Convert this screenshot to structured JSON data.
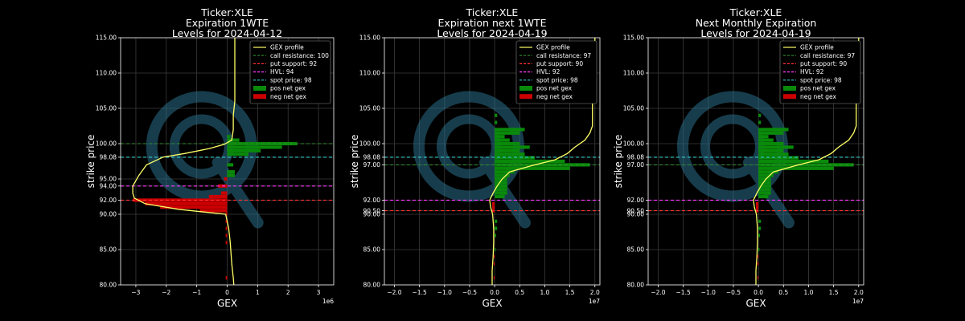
{
  "chart_data": [
    {
      "type": "bar",
      "title": [
        "Ticker:XLE",
        "Expiration 1WTE",
        "Levels for 2024-04-12"
      ],
      "xlabel": "GEX",
      "ylabel": "strike price",
      "x_exponent_label": "1e6",
      "x_scale": 1000000,
      "xlim": [
        -3.5,
        3.5
      ],
      "ylim": [
        80,
        115
      ],
      "xticks": [
        -3,
        -2,
        -1,
        0,
        1,
        2,
        3
      ],
      "xtick_labels": [
        "−3",
        "−2",
        "−1",
        "0",
        "1",
        "2",
        "3"
      ],
      "yticks": [
        80,
        85,
        90,
        92,
        94,
        95,
        98.08,
        100,
        105,
        110,
        115
      ],
      "ytick_labels": [
        "80.00",
        "85.00",
        "90.00",
        "92.00",
        "94.00",
        "95.00",
        "98.08",
        "100.00",
        "105.00",
        "110.00",
        "115.00"
      ],
      "grid": true,
      "legend_position": "top-right",
      "legend": [
        "GEX profile",
        "call resistance: 100",
        "put support: 92",
        "HVL: 94",
        "spot price: 98",
        "pos net gex",
        "neg net gex"
      ],
      "levels": {
        "call_resistance": 100,
        "put_support": 92,
        "hvl": 94,
        "spot": 98.08
      },
      "pos_bars": [
        [
          95.5,
          0.25
        ],
        [
          96,
          0.25
        ],
        [
          97,
          0.2
        ],
        [
          98.5,
          0.7
        ],
        [
          99,
          1.1
        ],
        [
          99.5,
          1.8
        ],
        [
          100,
          2.3
        ],
        [
          100.5,
          0.4
        ],
        [
          101,
          0.1
        ]
      ],
      "neg_bars": [
        [
          81,
          -0.05
        ],
        [
          86,
          -0.05
        ],
        [
          87,
          -0.05
        ],
        [
          88,
          -0.05
        ],
        [
          89,
          -0.05
        ],
        [
          90,
          -0.05
        ],
        [
          90.5,
          -0.9
        ],
        [
          91,
          -2.2
        ],
        [
          91.5,
          -2.7
        ],
        [
          92,
          -3.1
        ],
        [
          92.5,
          -0.6
        ],
        [
          93,
          -0.2
        ],
        [
          94,
          -0.3
        ],
        [
          95,
          -0.1
        ]
      ],
      "profile": [
        [
          0.22,
          80
        ],
        [
          0.2,
          81
        ],
        [
          0.15,
          83
        ],
        [
          0.1,
          86
        ],
        [
          0.05,
          88
        ],
        [
          0.0,
          89
        ],
        [
          -0.05,
          90
        ],
        [
          -1.6,
          90.7
        ],
        [
          -2.7,
          91.5
        ],
        [
          -3.05,
          92.3
        ],
        [
          -3.1,
          93
        ],
        [
          -3.1,
          94
        ],
        [
          -2.9,
          95.5
        ],
        [
          -2.65,
          97
        ],
        [
          -2.1,
          98.1
        ],
        [
          -1.4,
          98.6
        ],
        [
          -0.6,
          99.3
        ],
        [
          -0.1,
          99.9
        ],
        [
          0.15,
          100.5
        ],
        [
          0.2,
          102
        ],
        [
          0.2,
          104
        ],
        [
          0.25,
          106
        ],
        [
          0.25,
          110
        ],
        [
          0.25,
          115
        ]
      ]
    },
    {
      "type": "bar",
      "title": [
        "Ticker:XLE",
        "Expiration next 1WTE",
        "Levels for 2024-04-19"
      ],
      "xlabel": "GEX",
      "ylabel": "strike price",
      "x_exponent_label": "1e7",
      "x_scale": 10000000,
      "xlim": [
        -2.2,
        2.1
      ],
      "ylim": [
        80,
        115
      ],
      "xticks": [
        -2,
        -1.5,
        -1,
        -0.5,
        0,
        0.5,
        1,
        1.5,
        2
      ],
      "xtick_labels": [
        "−2.0",
        "−1.5",
        "−1.0",
        "−0.5",
        "0.0",
        "0.5",
        "1.0",
        "1.5",
        "2.0"
      ],
      "yticks": [
        80,
        85,
        90,
        90.5,
        92,
        97,
        98.08,
        100,
        105,
        110,
        115
      ],
      "ytick_labels": [
        "80.00",
        "85.00",
        "90.00",
        "90.50",
        "92.00",
        "97.00",
        "98.08",
        "100.00",
        "105.00",
        "110.00",
        "115.00"
      ],
      "grid": true,
      "legend_position": "top-right",
      "legend": [
        "GEX profile",
        "call resistance: 97",
        "put support: 90",
        "HVL: 92",
        "spot price: 98",
        "pos net gex",
        "neg net gex"
      ],
      "levels": {
        "call_resistance": 97,
        "put_support": 90.5,
        "hvl": 92,
        "spot": 98.08
      },
      "pos_bars": [
        [
          85,
          0.02
        ],
        [
          87,
          0.03
        ],
        [
          88,
          0.05
        ],
        [
          89,
          0.05
        ],
        [
          92.5,
          0.2
        ],
        [
          93,
          0.25
        ],
        [
          93.5,
          0.25
        ],
        [
          94,
          0.25
        ],
        [
          94.5,
          0.25
        ],
        [
          95,
          0.25
        ],
        [
          95.5,
          0.3
        ],
        [
          96,
          0.4
        ],
        [
          96.5,
          1.5
        ],
        [
          97,
          1.9
        ],
        [
          97.5,
          1.4
        ],
        [
          98,
          0.8
        ],
        [
          98.5,
          0.6
        ],
        [
          99,
          0.5
        ],
        [
          99.5,
          0.7
        ],
        [
          100,
          0.5
        ],
        [
          100.5,
          0.3
        ],
        [
          101,
          0.2
        ],
        [
          101.5,
          0.5
        ],
        [
          102,
          0.6
        ],
        [
          103,
          0.05
        ],
        [
          104,
          0.05
        ]
      ],
      "neg_bars": [
        [
          81,
          -0.02
        ],
        [
          83,
          -0.02
        ],
        [
          84,
          -0.02
        ],
        [
          90.5,
          -0.05
        ],
        [
          91,
          -0.05
        ],
        [
          91.5,
          -0.05
        ]
      ],
      "profile": [
        [
          -0.05,
          80
        ],
        [
          -0.05,
          82
        ],
        [
          -0.03,
          84
        ],
        [
          -0.02,
          86
        ],
        [
          -0.02,
          88
        ],
        [
          -0.04,
          90
        ],
        [
          -0.08,
          91
        ],
        [
          -0.1,
          92
        ],
        [
          -0.03,
          93
        ],
        [
          0.05,
          94
        ],
        [
          0.15,
          95
        ],
        [
          0.3,
          96
        ],
        [
          0.8,
          97
        ],
        [
          1.2,
          97.7
        ],
        [
          1.45,
          98.6
        ],
        [
          1.6,
          99.5
        ],
        [
          1.8,
          100.5
        ],
        [
          1.9,
          101.5
        ],
        [
          1.95,
          102.5
        ],
        [
          1.95,
          106
        ],
        [
          2.0,
          110
        ],
        [
          2.0,
          115
        ]
      ]
    },
    {
      "type": "bar",
      "title": [
        "Ticker:XLE",
        "Next Monthly Expiration",
        "Levels for 2024-04-19"
      ],
      "xlabel": "GEX",
      "ylabel": "strike price",
      "x_exponent_label": "1e7",
      "x_scale": 10000000,
      "xlim": [
        -2.2,
        2.1
      ],
      "ylim": [
        80,
        115
      ],
      "xticks": [
        -2,
        -1.5,
        -1,
        -0.5,
        0,
        0.5,
        1,
        1.5,
        2
      ],
      "xtick_labels": [
        "−2.0",
        "−1.5",
        "−1.0",
        "−0.5",
        "0.0",
        "0.5",
        "1.0",
        "1.5",
        "2.0"
      ],
      "yticks": [
        80,
        85,
        90,
        90.5,
        92,
        97,
        98.08,
        100,
        105,
        110,
        115
      ],
      "ytick_labels": [
        "80.00",
        "85.00",
        "90.00",
        "90.50",
        "92.00",
        "97.00",
        "98.08",
        "100.00",
        "105.00",
        "110.00",
        "115.00"
      ],
      "grid": true,
      "legend_position": "top-right",
      "legend": [
        "GEX profile",
        "call resistance: 97",
        "put support: 90",
        "HVL: 92",
        "spot price: 98",
        "pos net gex",
        "neg net gex"
      ],
      "levels": {
        "call_resistance": 97,
        "put_support": 90.5,
        "hvl": 92,
        "spot": 98.08
      },
      "pos_bars": [
        [
          85,
          0.02
        ],
        [
          87,
          0.03
        ],
        [
          88,
          0.05
        ],
        [
          89,
          0.05
        ],
        [
          92.5,
          0.2
        ],
        [
          93,
          0.25
        ],
        [
          93.5,
          0.25
        ],
        [
          94,
          0.25
        ],
        [
          94.5,
          0.25
        ],
        [
          95,
          0.25
        ],
        [
          95.5,
          0.3
        ],
        [
          96,
          0.4
        ],
        [
          96.5,
          1.5
        ],
        [
          97,
          1.9
        ],
        [
          97.5,
          1.4
        ],
        [
          98,
          0.8
        ],
        [
          98.5,
          0.6
        ],
        [
          99,
          0.5
        ],
        [
          99.5,
          0.7
        ],
        [
          100,
          0.5
        ],
        [
          100.5,
          0.3
        ],
        [
          101,
          0.2
        ],
        [
          101.5,
          0.5
        ],
        [
          102,
          0.6
        ],
        [
          103,
          0.05
        ],
        [
          104,
          0.05
        ]
      ],
      "neg_bars": [
        [
          81,
          -0.02
        ],
        [
          83,
          -0.02
        ],
        [
          84,
          -0.02
        ],
        [
          90.5,
          -0.05
        ],
        [
          91,
          -0.05
        ],
        [
          91.5,
          -0.05
        ]
      ],
      "profile": [
        [
          -0.05,
          80
        ],
        [
          -0.05,
          82
        ],
        [
          -0.03,
          84
        ],
        [
          -0.02,
          86
        ],
        [
          -0.02,
          88
        ],
        [
          -0.04,
          90
        ],
        [
          -0.08,
          91
        ],
        [
          -0.1,
          92
        ],
        [
          -0.03,
          93
        ],
        [
          0.05,
          94
        ],
        [
          0.15,
          95
        ],
        [
          0.3,
          96
        ],
        [
          0.8,
          97
        ],
        [
          1.2,
          97.7
        ],
        [
          1.45,
          98.6
        ],
        [
          1.6,
          99.5
        ],
        [
          1.8,
          100.5
        ],
        [
          1.9,
          101.5
        ],
        [
          1.95,
          102.5
        ],
        [
          1.95,
          106
        ],
        [
          2.0,
          110
        ],
        [
          2.0,
          115
        ]
      ]
    }
  ],
  "colors": {
    "background": "#000000",
    "profile": "#ffff66",
    "call_resistance": "#2e8b2e",
    "put_support": "#ff3030",
    "hvl": "#ff33ff",
    "spot": "#33cccc",
    "pos_bar": "#0a8a0a",
    "neg_bar": "#cc0000",
    "grid": "#3a3a3a",
    "axes": "#ffffff",
    "watermark": "#2a6f8a"
  }
}
